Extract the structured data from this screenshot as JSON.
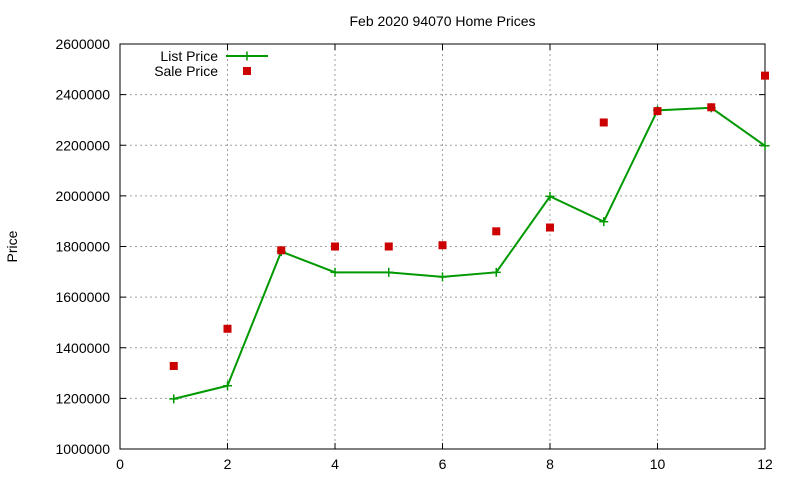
{
  "chart_data": {
    "type": "line",
    "title": "Feb 2020 94070 Home Prices",
    "xlabel": "",
    "ylabel": "Price",
    "xlim": [
      0,
      12
    ],
    "ylim": [
      1000000,
      2600000
    ],
    "xticks": [
      0,
      2,
      4,
      6,
      8,
      10,
      12
    ],
    "yticks": [
      1000000,
      1200000,
      1400000,
      1600000,
      1800000,
      2000000,
      2200000,
      2400000,
      2600000
    ],
    "grid": true,
    "legend_position": "top-left",
    "series": [
      {
        "name": "List Price",
        "style": "line-with-plus-markers",
        "color": "#009900",
        "x": [
          1,
          2,
          3,
          4,
          5,
          6,
          7,
          8,
          9,
          10,
          11,
          12
        ],
        "values": [
          1198000,
          1250000,
          1780000,
          1698000,
          1698000,
          1680000,
          1698000,
          1998000,
          1898000,
          2338000,
          2348000,
          2198000
        ]
      },
      {
        "name": "Sale Price",
        "style": "square-markers",
        "color": "#cc0000",
        "x": [
          1,
          2,
          3,
          4,
          5,
          6,
          7,
          8,
          9,
          10,
          11,
          12
        ],
        "values": [
          1328000,
          1475000,
          1785000,
          1800000,
          1800000,
          1805000,
          1860000,
          1875000,
          2290000,
          2335000,
          2350000,
          2475000
        ]
      }
    ]
  }
}
